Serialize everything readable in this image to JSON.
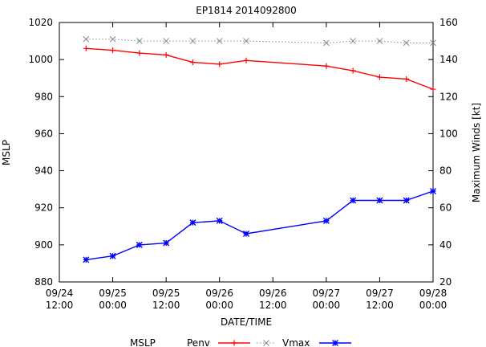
{
  "chart_data": {
    "type": "line",
    "title": "EP1814 2014092800",
    "xlabel": "DATE/TIME",
    "ylabel": "MSLP",
    "y2label": "Maximum Winds [kt]",
    "ylim": [
      880,
      1020
    ],
    "y2lim": [
      20,
      160
    ],
    "xlim": [
      "2014-09-24 12:00",
      "2014-09-28 00:00"
    ],
    "yticks": [
      880,
      900,
      920,
      940,
      960,
      980,
      1000,
      1020
    ],
    "y2ticks": [
      20,
      40,
      60,
      80,
      100,
      120,
      140,
      160
    ],
    "xticks": [
      {
        "t": "2014-09-24 12:00",
        "line1": "09/24",
        "line2": "12:00"
      },
      {
        "t": "2014-09-25 00:00",
        "line1": "09/25",
        "line2": "00:00"
      },
      {
        "t": "2014-09-25 12:00",
        "line1": "09/25",
        "line2": "12:00"
      },
      {
        "t": "2014-09-26 00:00",
        "line1": "09/26",
        "line2": "00:00"
      },
      {
        "t": "2014-09-26 12:00",
        "line1": "09/26",
        "line2": "12:00"
      },
      {
        "t": "2014-09-27 00:00",
        "line1": "09/27",
        "line2": "00:00"
      },
      {
        "t": "2014-09-27 12:00",
        "line1": "09/27",
        "line2": "12:00"
      },
      {
        "t": "2014-09-28 00:00",
        "line1": "09/28",
        "line2": "00:00"
      }
    ],
    "grid": false,
    "legend_position": "bottom",
    "legend_title": "MSLP",
    "series": [
      {
        "name": "Penv",
        "axis": "left",
        "color": "#ff0000",
        "marker": "plus",
        "line": "solid",
        "points": [
          [
            "2014-09-24 18:00",
            1006
          ],
          [
            "2014-09-25 00:00",
            1005
          ],
          [
            "2014-09-25 06:00",
            1003.5
          ],
          [
            "2014-09-25 12:00",
            1002.5
          ],
          [
            "2014-09-25 18:00",
            998.5
          ],
          [
            "2014-09-26 00:00",
            997.5
          ],
          [
            "2014-09-26 06:00",
            999.5
          ],
          [
            "2014-09-27 00:00",
            996.5
          ],
          [
            "2014-09-27 06:00",
            994
          ],
          [
            "2014-09-27 12:00",
            990.5
          ],
          [
            "2014-09-27 18:00",
            989.5
          ],
          [
            "2014-09-28 00:00",
            984
          ]
        ]
      },
      {
        "name": "",
        "axis": "left",
        "color": "#888888",
        "marker": "x",
        "line": "dotted",
        "points": [
          [
            "2014-09-24 18:00",
            1011
          ],
          [
            "2014-09-25 00:00",
            1011
          ],
          [
            "2014-09-25 06:00",
            1010
          ],
          [
            "2014-09-25 12:00",
            1010
          ],
          [
            "2014-09-25 18:00",
            1010
          ],
          [
            "2014-09-26 00:00",
            1010
          ],
          [
            "2014-09-26 06:00",
            1010
          ],
          [
            "2014-09-27 00:00",
            1009
          ],
          [
            "2014-09-27 06:00",
            1010
          ],
          [
            "2014-09-27 12:00",
            1010
          ],
          [
            "2014-09-27 18:00",
            1009
          ],
          [
            "2014-09-28 00:00",
            1009
          ]
        ]
      },
      {
        "name": "Vmax",
        "axis": "right",
        "color": "#0000ff",
        "marker": "star",
        "line": "solid",
        "points": [
          [
            "2014-09-24 18:00",
            32
          ],
          [
            "2014-09-25 00:00",
            34
          ],
          [
            "2014-09-25 06:00",
            40
          ],
          [
            "2014-09-25 12:00",
            41
          ],
          [
            "2014-09-25 18:00",
            52
          ],
          [
            "2014-09-26 00:00",
            53
          ],
          [
            "2014-09-26 06:00",
            46
          ],
          [
            "2014-09-27 00:00",
            53
          ],
          [
            "2014-09-27 06:00",
            64
          ],
          [
            "2014-09-27 12:00",
            64
          ],
          [
            "2014-09-27 18:00",
            64
          ],
          [
            "2014-09-28 00:00",
            69
          ]
        ]
      }
    ]
  }
}
